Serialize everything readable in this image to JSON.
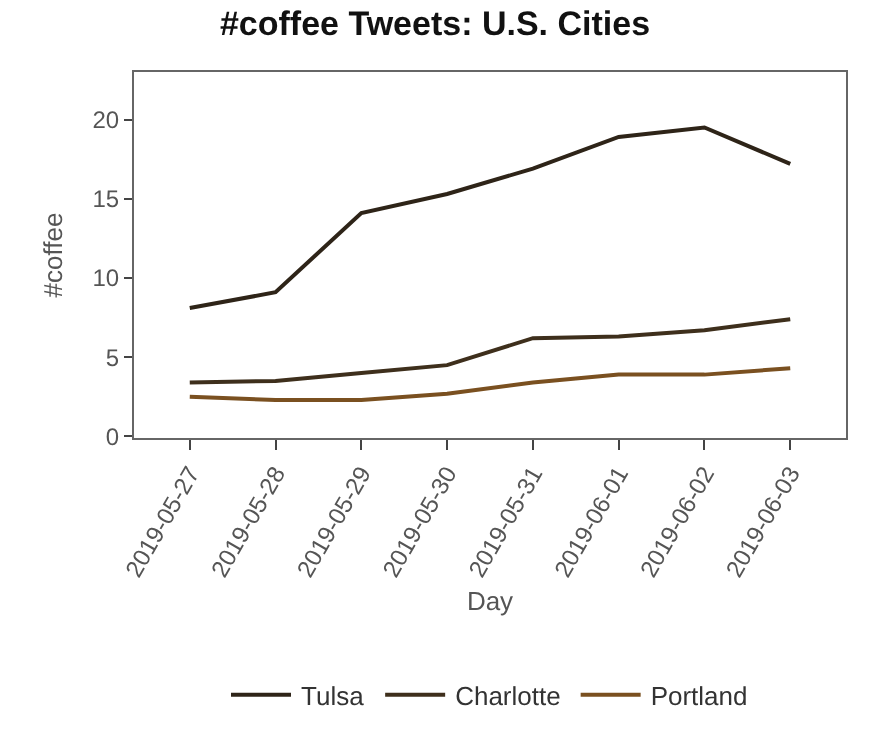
{
  "chart_data": {
    "type": "line",
    "title": "#coffee Tweets: U.S. Cities",
    "xlabel": "Day",
    "ylabel": "#coffee",
    "categories": [
      "2019-05-27",
      "2019-05-28",
      "2019-05-29",
      "2019-05-30",
      "2019-05-31",
      "2019-06-01",
      "2019-06-02",
      "2019-06-03"
    ],
    "series": [
      {
        "name": "Tulsa",
        "color": "#2e2418",
        "values": [
          8.1,
          9.1,
          14.1,
          15.3,
          16.9,
          18.9,
          19.5,
          17.2
        ]
      },
      {
        "name": "Charlotte",
        "color": "#3e2f1c",
        "values": [
          3.4,
          3.5,
          4.0,
          4.5,
          6.2,
          6.3,
          6.7,
          7.4
        ]
      },
      {
        "name": "Portland",
        "color": "#7a5020",
        "values": [
          2.5,
          2.3,
          2.3,
          2.7,
          3.4,
          3.9,
          3.9,
          4.3
        ]
      }
    ],
    "ylim": [
      -0.1,
      23
    ],
    "yticks": [
      0,
      5,
      10,
      15,
      20
    ],
    "grid": false,
    "legend": "bottom",
    "marker": "none",
    "line_style": "solid"
  }
}
